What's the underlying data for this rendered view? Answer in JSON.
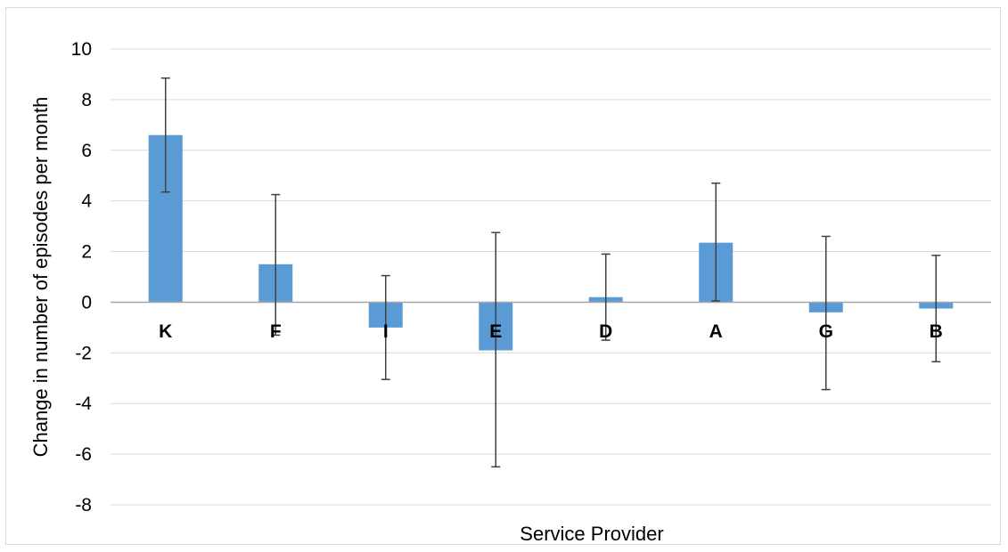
{
  "chart_data": {
    "type": "bar",
    "title": "",
    "xlabel": "Service Provider",
    "ylabel": "Change in number of episodes per month",
    "categories": [
      "K",
      "F",
      "I",
      "E",
      "D",
      "A",
      "G",
      "B"
    ],
    "values": [
      6.6,
      1.5,
      -1.0,
      -1.9,
      0.2,
      2.35,
      -0.4,
      -0.25
    ],
    "error_bars": {
      "upper": [
        8.85,
        4.25,
        1.05,
        2.75,
        1.9,
        4.7,
        2.6,
        1.85
      ],
      "lower": [
        4.35,
        -1.3,
        -3.05,
        -6.5,
        -1.5,
        0.05,
        -3.45,
        -2.35
      ]
    },
    "ylim": [
      -8,
      10
    ],
    "yticks": [
      10,
      8,
      6,
      4,
      2,
      0,
      -2,
      -4,
      -6,
      -8
    ],
    "grid": true,
    "legend": "none",
    "colors": {
      "bar": "#5b9bd5",
      "grid": "#d9d9d9",
      "zero_line": "#a6a6a6",
      "error_bar": "#404040"
    }
  }
}
